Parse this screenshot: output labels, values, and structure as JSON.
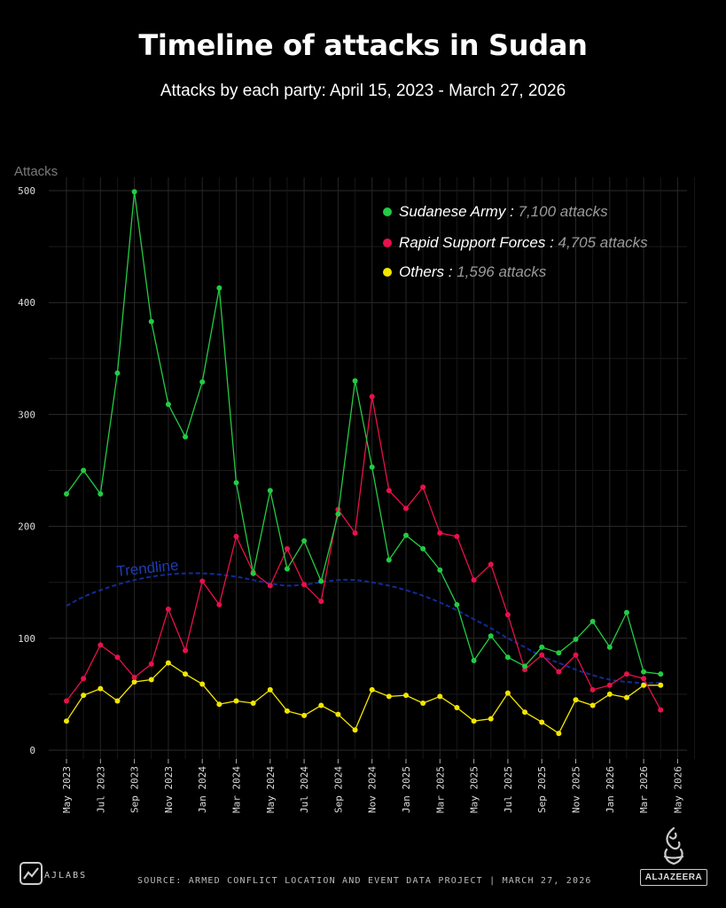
{
  "header": {
    "title": "Timeline of attacks in Sudan",
    "subtitle": "Attacks by each party: April 15, 2023 - March 27, 2026"
  },
  "chart_data": {
    "type": "line",
    "ylabel": "Attacks",
    "ylim": [
      0,
      500
    ],
    "yticks": [
      0,
      100,
      200,
      300,
      400,
      500
    ],
    "grid": true,
    "legend_position": "top-right",
    "x_tick_labels": [
      "May 2023",
      "Jul 2023",
      "Sep 2023",
      "Nov 2023",
      "Jan 2024",
      "Mar 2024",
      "May 2024",
      "Jul 2024",
      "Sep 2024",
      "Nov 2024",
      "Jan 2025",
      "Mar 2025",
      "May 2025",
      "Jul 2025",
      "Sep 2025",
      "Nov 2025",
      "Jan 2026",
      "Mar 2026",
      "May 2026"
    ],
    "x": [
      "2023-05",
      "2023-06",
      "2023-07",
      "2023-08",
      "2023-09",
      "2023-10",
      "2023-11",
      "2023-12",
      "2024-01",
      "2024-02",
      "2024-03",
      "2024-04",
      "2024-05",
      "2024-06",
      "2024-07",
      "2024-08",
      "2024-09",
      "2024-10",
      "2024-11",
      "2024-12",
      "2025-01",
      "2025-02",
      "2025-03",
      "2025-04",
      "2025-05",
      "2025-06",
      "2025-07",
      "2025-08",
      "2025-09",
      "2025-10",
      "2025-11",
      "2025-12",
      "2026-01",
      "2026-02",
      "2026-03",
      "2026-04"
    ],
    "series": [
      {
        "name": "Sudanese Army",
        "total_label": "7,100 attacks",
        "color": "#22cc44",
        "values": [
          229,
          250,
          229,
          337,
          499,
          383,
          309,
          280,
          329,
          413,
          239,
          158,
          232,
          162,
          187,
          151,
          211,
          330,
          253,
          170,
          192,
          180,
          161,
          130,
          80,
          102,
          83,
          75,
          92,
          87,
          99,
          115,
          92,
          123,
          70,
          68
        ]
      },
      {
        "name": "Rapid Support Forces",
        "total_label": "4,705 attacks",
        "color": "#e8114b",
        "values": [
          44,
          64,
          94,
          83,
          65,
          77,
          126,
          89,
          151,
          130,
          191,
          159,
          147,
          180,
          148,
          133,
          215,
          194,
          316,
          232,
          216,
          235,
          194,
          191,
          152,
          166,
          121,
          72,
          85,
          70,
          85,
          54,
          58,
          68,
          64,
          36
        ]
      },
      {
        "name": "Others",
        "total_label": "1,596 attacks",
        "color": "#f2e600",
        "values": [
          26,
          49,
          55,
          44,
          61,
          63,
          78,
          68,
          59,
          41,
          44,
          42,
          54,
          35,
          31,
          40,
          32,
          18,
          54,
          48,
          49,
          42,
          48,
          38,
          26,
          28,
          51,
          34,
          25,
          15,
          45,
          40,
          50,
          47,
          58,
          58
        ]
      }
    ],
    "trendline": {
      "label": "Trendline",
      "color": "#1430a8",
      "values": [
        129,
        137,
        143,
        148,
        152,
        155,
        157,
        158,
        158,
        157,
        155,
        152,
        149,
        147,
        148,
        150,
        152,
        152,
        150,
        147,
        143,
        138,
        132,
        125,
        117,
        109,
        100,
        92,
        84,
        78,
        72,
        67,
        63,
        61,
        60,
        60
      ]
    },
    "legend_separator": ":"
  },
  "footer": {
    "source": "SOURCE:   ARMED CONFLICT LOCATION AND EVENT DATA PROJECT   |   MARCH 27, 2026",
    "brand_left": "AJLABS",
    "brand_right": "ALJAZEERA"
  },
  "icons": {
    "ajlabs_logo": "chart-line-icon",
    "aljazeera_logo": "aljazeera-calligraphy-icon"
  }
}
